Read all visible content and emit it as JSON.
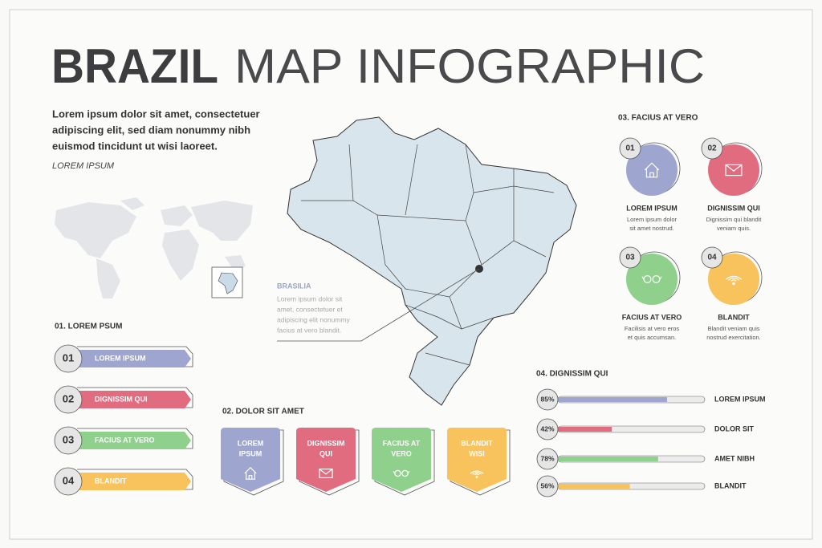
{
  "title": {
    "bold": "BRAZIL",
    "light": "MAP INFOGRAPHIC"
  },
  "intro": {
    "lines": [
      "Lorem ipsum dolor sit amet, consectetuer",
      "adipiscing elit, sed diam nonummy nibh",
      "euismod tincidunt ut wisi laoreet."
    ],
    "caption": "LOREM IPSUM"
  },
  "map_callout": {
    "title": "BRASILIA",
    "lines": [
      "Lorem ipsum dolor sit",
      "amet, consectetuer et",
      "adipiscing elit nonummy",
      "facius at vero blandit."
    ]
  },
  "section1": {
    "heading": "01. LOREM PSUM",
    "items": [
      {
        "number": "01",
        "label": "LOREM IPSUM"
      },
      {
        "number": "02",
        "label": "DIGNISSIM QUI"
      },
      {
        "number": "03",
        "label": "FACIUS AT VERO"
      },
      {
        "number": "04",
        "label": "BLANDIT"
      }
    ]
  },
  "section2": {
    "heading": "02. DOLOR SIT AMET",
    "items": [
      {
        "lines": [
          "LOREM",
          "IPSUM"
        ]
      },
      {
        "lines": [
          "DIGNISSIM",
          "QUI"
        ]
      },
      {
        "lines": [
          "FACIUS AT",
          "VERO"
        ]
      },
      {
        "lines": [
          "BLANDIT",
          "WISI"
        ]
      }
    ]
  },
  "section3": {
    "heading": "03. FACIUS AT VERO",
    "items": [
      {
        "number": "01",
        "title": "LOREM IPSUM",
        "lines": [
          "Lorem ipsum dolor",
          "sit amet nostrud."
        ]
      },
      {
        "number": "02",
        "title": "DIGNISSIM QUI",
        "lines": [
          "Dignissim qui blandit",
          "veniam quis."
        ]
      },
      {
        "number": "03",
        "title": "FACIUS AT VERO",
        "lines": [
          "Facilisis at vero eros",
          "et quis accumsan."
        ]
      },
      {
        "number": "04",
        "title": "BLANDIT",
        "lines": [
          "Blandit veniam quis",
          "nostrud exercitation."
        ]
      }
    ]
  },
  "section4": {
    "heading": "04. DIGNISSIM QUI",
    "bars": [
      {
        "label": "LOREM IPSUM",
        "value": 85,
        "value_label": "85%"
      },
      {
        "label": "DOLOR SIT",
        "value": 42,
        "value_label": "42%"
      },
      {
        "label": "AMET NIBH",
        "value": 78,
        "value_label": "78%"
      },
      {
        "label": "BLANDIT",
        "value": 56,
        "value_label": "56%"
      }
    ]
  }
}
